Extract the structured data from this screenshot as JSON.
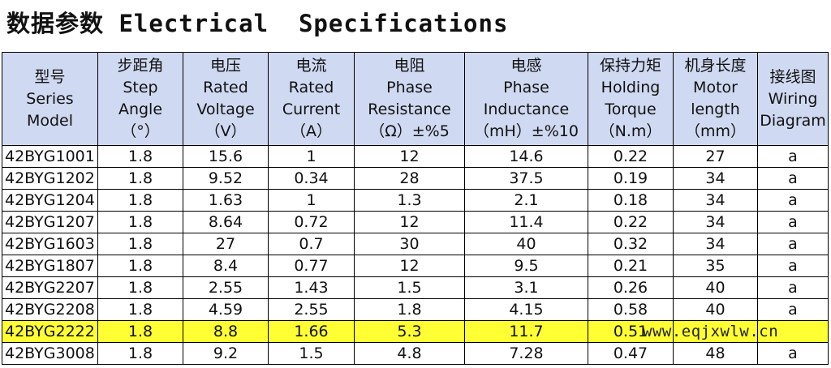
{
  "title": "数据参数 Electrical  Specifications",
  "columns": [
    {
      "lines": [
        "型号",
        "Series",
        "Model"
      ]
    },
    {
      "lines": [
        "步距角",
        "Step",
        "Angle",
        "（°）"
      ]
    },
    {
      "lines": [
        "电压",
        "Rated",
        "Voltage",
        "（V）"
      ]
    },
    {
      "lines": [
        "电流",
        "Rated",
        "Current",
        "（A）"
      ]
    },
    {
      "lines": [
        "电阻",
        "Phase",
        "Resistance",
        "（Ω）±%5"
      ]
    },
    {
      "lines": [
        "电感",
        "Phase",
        "Inductance",
        "（mH）±%10"
      ]
    },
    {
      "lines": [
        "保持力矩",
        "Holding",
        "Torque",
        "（N.m）"
      ]
    },
    {
      "lines": [
        "机身长度",
        "Motor",
        "length",
        "（mm）"
      ]
    },
    {
      "lines": [
        "接线图",
        "Wiring",
        "Diagram"
      ]
    }
  ],
  "rows": [
    {
      "cells": [
        "42BYG1001",
        "1.8",
        "15.6",
        "1",
        "12",
        "14.6",
        "0.22",
        "27",
        "a"
      ],
      "highlight": false
    },
    {
      "cells": [
        "42BYG1202",
        "1.8",
        "9.52",
        "0.34",
        "28",
        "37.5",
        "0.19",
        "34",
        "a"
      ],
      "highlight": false
    },
    {
      "cells": [
        "42BYG1204",
        "1.8",
        "1.63",
        "1",
        "1.3",
        "2.1",
        "0.18",
        "34",
        "a"
      ],
      "highlight": false
    },
    {
      "cells": [
        "42BYG1207",
        "1.8",
        "8.64",
        "0.72",
        "12",
        "11.4",
        "0.22",
        "34",
        "a"
      ],
      "highlight": false
    },
    {
      "cells": [
        "42BYG1603",
        "1.8",
        "27",
        "0.7",
        "30",
        "40",
        "0.32",
        "34",
        "a"
      ],
      "highlight": false
    },
    {
      "cells": [
        "42BYG1807",
        "1.8",
        "8.4",
        "0.77",
        "12",
        "9.5",
        "0.21",
        "35",
        "a"
      ],
      "highlight": false
    },
    {
      "cells": [
        "42BYG2207",
        "1.8",
        "2.55",
        "1.43",
        "1.5",
        "3.1",
        "0.26",
        "40",
        "a"
      ],
      "highlight": false
    },
    {
      "cells": [
        "42BYG2208",
        "1.8",
        "4.59",
        "2.55",
        "1.8",
        "4.15",
        "0.58",
        "40",
        "a"
      ],
      "highlight": false
    },
    {
      "cells": [
        "42BYG2222",
        "1.8",
        "8.8",
        "1.66",
        "5.3",
        "11.7",
        "0.51",
        "",
        ""
      ],
      "highlight": true
    },
    {
      "cells": [
        "42BYG3008",
        "1.8",
        "9.2",
        "1.5",
        "4.8",
        "7.28",
        "0.47",
        "48",
        "a"
      ],
      "highlight": false
    }
  ],
  "watermark": "www.eqjxwlw.cn",
  "colors": {
    "header_bg": "#cfd9f1",
    "highlight_bg": "#ffff33",
    "border": "#000000"
  }
}
